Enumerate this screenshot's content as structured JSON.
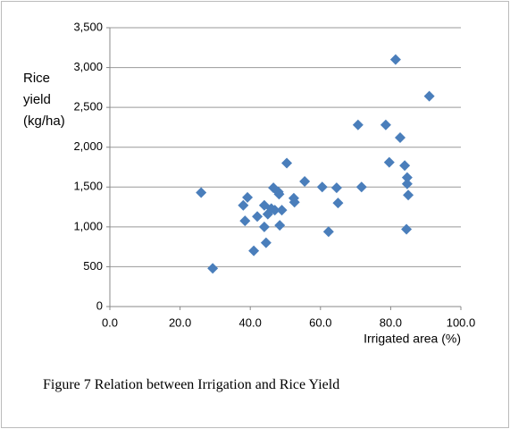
{
  "chart_data": {
    "type": "scatter",
    "caption": "Figure 7  Relation between Irrigation and Rice Yield",
    "x_label": "Irrigated area (%)",
    "y_label": "Rice yield (kg/ha)",
    "color": "#4a7ebb",
    "grid": true,
    "x": [
      26,
      29.3,
      38,
      38.5,
      39.2,
      41,
      42,
      44,
      44,
      44.5,
      45,
      46,
      46.6,
      47,
      48,
      48.2,
      48.4,
      49,
      50.4,
      52.4,
      52.6,
      55.5,
      60.5,
      62.3,
      64.6,
      65,
      70.7,
      71.7,
      78.6,
      79.6,
      81.4,
      82.7,
      84,
      84.7,
      84.7,
      85,
      84.5,
      91
    ],
    "values": [
      1430,
      480,
      1270,
      1075,
      1370,
      700,
      1130,
      1270,
      1000,
      800,
      1160,
      1230,
      1490,
      1210,
      1440,
      1410,
      1020,
      1210,
      1800,
      1360,
      1310,
      1570,
      1500,
      940,
      1490,
      1300,
      2280,
      1500,
      2280,
      1810,
      3100,
      2120,
      1770,
      1620,
      1540,
      1400,
      970,
      2640
    ],
    "xlim": [
      0,
      100
    ],
    "xticks": [
      {
        "value": 0,
        "label": "0.0"
      },
      {
        "value": 20,
        "label": "20.0"
      },
      {
        "value": 40,
        "label": "40.0"
      },
      {
        "value": 60,
        "label": "60.0"
      },
      {
        "value": 80,
        "label": "80.0"
      },
      {
        "value": 100,
        "label": "100.0"
      }
    ],
    "ylim": [
      0,
      3500
    ],
    "yticks": [
      0,
      {
        "value": 500,
        "label": "500"
      },
      {
        "value": 1000,
        "label": "1,000"
      },
      {
        "value": 1500,
        "label": "1,500"
      },
      {
        "value": 2000,
        "label": "2,000"
      },
      {
        "value": 2500,
        "label": "2,500"
      },
      {
        "value": 3000,
        "label": "3,000"
      },
      {
        "value": 3500,
        "label": "3,500"
      }
    ]
  }
}
